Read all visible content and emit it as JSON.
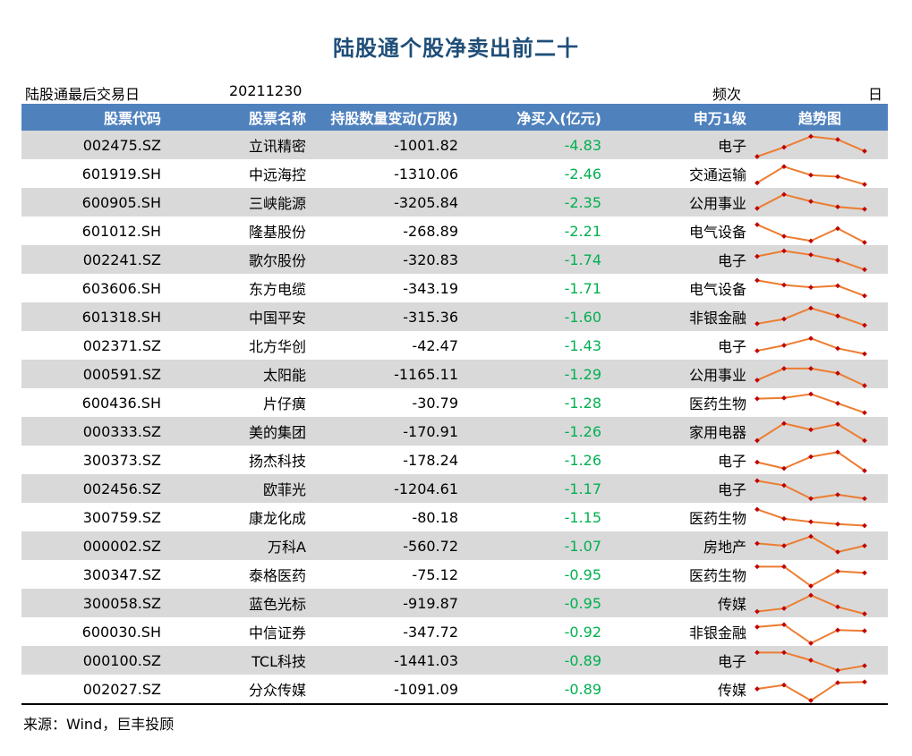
{
  "title": "陆股通个股净卖出前二十",
  "meta": {
    "last_trade_label": "陆股通最后交易日",
    "last_trade_date": "20211230",
    "frequency_label": "频次",
    "frequency_value": "日"
  },
  "columns": [
    "股票代码",
    "股票名称",
    "持股数量变动(万股)",
    "净买入(亿元)",
    "申万1级",
    "趋势图"
  ],
  "colors": {
    "header_bg": "#4f81bd",
    "stripe": "#d9d9d9",
    "title": "#1f4e79",
    "net_buy": "#00b050",
    "spark_line": "#ed7d31",
    "spark_point": "#c00000"
  },
  "rows": [
    {
      "code": "002475.SZ",
      "name": "立讯精密",
      "change": "-1001.82",
      "net_buy": "-4.83",
      "industry": "电子",
      "trend": [
        3,
        1.8,
        0.4,
        0.8,
        2.3
      ]
    },
    {
      "code": "601919.SH",
      "name": "中远海控",
      "change": "-1310.06",
      "net_buy": "-2.46",
      "industry": "交通运输",
      "trend": [
        2.7,
        0.6,
        1.7,
        1.9,
        2.9
      ]
    },
    {
      "code": "600905.SH",
      "name": "三峡能源",
      "change": "-3205.84",
      "net_buy": "-2.35",
      "industry": "公用事业",
      "trend": [
        2.3,
        0.5,
        1.4,
        2.1,
        2.4
      ]
    },
    {
      "code": "601012.SH",
      "name": "隆基股份",
      "change": "-268.89",
      "net_buy": "-2.21",
      "industry": "电气设备",
      "trend": [
        0.7,
        2.2,
        2.8,
        1.2,
        3.0
      ]
    },
    {
      "code": "002241.SZ",
      "name": "歌尔股份",
      "change": "-320.83",
      "net_buy": "-1.74",
      "industry": "电子",
      "trend": [
        1.1,
        0.4,
        0.9,
        1.6,
        2.8
      ]
    },
    {
      "code": "603606.SH",
      "name": "东方电缆",
      "change": "-343.19",
      "net_buy": "-1.71",
      "industry": "电气设备",
      "trend": [
        0.5,
        1.1,
        1.4,
        1.2,
        2.5
      ]
    },
    {
      "code": "601318.SH",
      "name": "中国平安",
      "change": "-315.36",
      "net_buy": "-1.60",
      "industry": "非银金融",
      "trend": [
        2.4,
        1.8,
        0.4,
        1.4,
        2.6
      ]
    },
    {
      "code": "002371.SZ",
      "name": "北方华创",
      "change": "-42.47",
      "net_buy": "-1.43",
      "industry": "电子",
      "trend": [
        2.2,
        1.5,
        0.6,
        1.9,
        2.6
      ]
    },
    {
      "code": "000591.SZ",
      "name": "太阳能",
      "change": "-1165.11",
      "net_buy": "-1.29",
      "industry": "公用事业",
      "trend": [
        2.3,
        0.8,
        0.8,
        1.4,
        3.0
      ]
    },
    {
      "code": "600436.SH",
      "name": "片仔癀",
      "change": "-30.79",
      "net_buy": "-1.28",
      "industry": "医药生物",
      "trend": [
        1.0,
        0.9,
        0.4,
        1.6,
        2.8
      ]
    },
    {
      "code": "000333.SZ",
      "name": "美的集团",
      "change": "-170.91",
      "net_buy": "-1.26",
      "industry": "家用电器",
      "trend": [
        2.7,
        0.5,
        1.3,
        0.6,
        2.7
      ]
    },
    {
      "code": "300373.SZ",
      "name": "扬杰科技",
      "change": "-178.24",
      "net_buy": "-1.26",
      "industry": "电子",
      "trend": [
        1.8,
        2.6,
        1.1,
        0.5,
        2.9
      ]
    },
    {
      "code": "002456.SZ",
      "name": "欧菲光",
      "change": "-1204.61",
      "net_buy": "-1.17",
      "industry": "电子",
      "trend": [
        0.5,
        1.1,
        2.8,
        2.3,
        2.8
      ]
    },
    {
      "code": "300759.SZ",
      "name": "康龙化成",
      "change": "-80.18",
      "net_buy": "-1.15",
      "industry": "医药生物",
      "trend": [
        0.5,
        1.7,
        2.1,
        2.4,
        2.6
      ]
    },
    {
      "code": "000002.SZ",
      "name": "万科A",
      "change": "-560.72",
      "net_buy": "-1.07",
      "industry": "房地产",
      "trend": [
        1.2,
        1.5,
        0.3,
        2.3,
        1.5
      ]
    },
    {
      "code": "300347.SZ",
      "name": "泰格医药",
      "change": "-75.12",
      "net_buy": "-0.95",
      "industry": "医药生物",
      "trend": [
        0.5,
        0.5,
        3.0,
        1.1,
        1.3
      ]
    },
    {
      "code": "300058.SZ",
      "name": "蓝色光标",
      "change": "-919.87",
      "net_buy": "-0.95",
      "industry": "传媒",
      "trend": [
        2.6,
        2.2,
        0.5,
        2.0,
        2.9
      ]
    },
    {
      "code": "600030.SH",
      "name": "中信证券",
      "change": "-347.72",
      "net_buy": "-0.92",
      "industry": "非银金融",
      "trend": [
        0.9,
        0.6,
        3.0,
        1.3,
        1.4
      ]
    },
    {
      "code": "000100.SZ",
      "name": "TCL科技",
      "change": "-1441.03",
      "net_buy": "-0.89",
      "industry": "电子",
      "trend": [
        0.5,
        0.5,
        1.5,
        2.8,
        2.2
      ]
    },
    {
      "code": "002027.SZ",
      "name": "分众传媒",
      "change": "-1091.09",
      "net_buy": "-0.89",
      "industry": "传媒",
      "trend": [
        1.5,
        1.0,
        3.0,
        0.7,
        0.6
      ]
    }
  ],
  "source": "来源：Wind，巨丰投顾"
}
